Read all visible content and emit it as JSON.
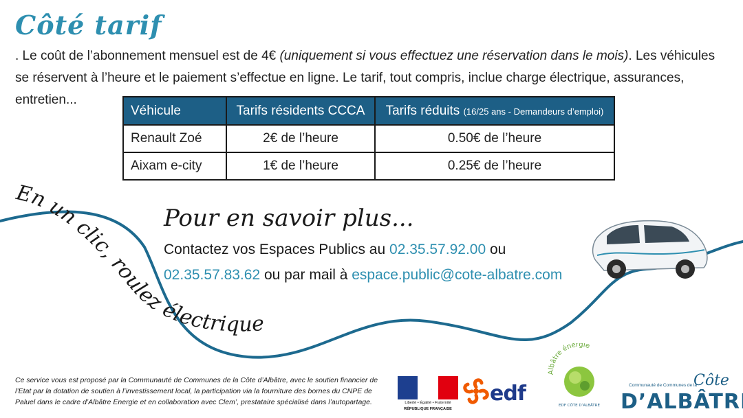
{
  "title": "Côté tarif",
  "intro": {
    "part1": ". Le coût de l’abonnement mensuel est de 4€ ",
    "italic": "(uniquement si vous effectuez une réservation dans le mois)",
    "part2": ". Les véhicules se réservent à l’heure et le paiement s’effectue en ligne. Le tarif, tout compris, inclue charge électrique, assurances, entretien..."
  },
  "table": {
    "headers": {
      "col1": "Véhicule",
      "col2": "Tarifs résidents CCCA",
      "col3": "Tarifs réduits",
      "col3_note": "(16/25 ans - Demandeurs d’emploi)"
    },
    "rows": [
      {
        "vehicle": "Renault Zoé",
        "resident": "2€ de l’heure",
        "reduced": "0.50€ de l’heure"
      },
      {
        "vehicle": "Aixam e-city",
        "resident": "1€ de l’heure",
        "reduced": "0.25€ de l’heure"
      }
    ]
  },
  "slogan": "En un clic, roulez électrique !",
  "more": {
    "title": "Pour en savoir plus...",
    "line1_prefix": "Contactez vos Espaces Publics au ",
    "phone1": "02.35.57.92.00",
    "line1_suffix": " ou",
    "phone2": "02.35.57.83.62",
    "line2_middle": " ou par mail à ",
    "email": "espace.public@cote-albatre.com"
  },
  "footnote": "Ce service vous est proposé par la Communauté de Communes de la Côte d’Albâtre, avec le soutien financier de l’Etat par la dotation de soutien à l’investissement local, la participation via la fourniture des bornes du CNPE de Paluel dans le cadre d’Albâtre Energie et en collaboration avec Clem’, prestataire spécialisé dans l’autopartage.",
  "logos": {
    "rf_motto": "Liberté • Égalité • Fraternité",
    "rf_name": "RÉPUBLIQUE FRANÇAISE",
    "edf": "edf",
    "albatre_energie": "Albâtre énergie",
    "albatre_energie_sub": "EDF  CÔTE D’ALBÂTRE",
    "cote_small": "Communauté de Communes de la",
    "cote_word": "Côte",
    "cote_name": "D’ALBÂTRE"
  },
  "colors": {
    "accent": "#2e8fb0",
    "header_bg": "#1d5f86",
    "wave": "#1d6a8f"
  }
}
